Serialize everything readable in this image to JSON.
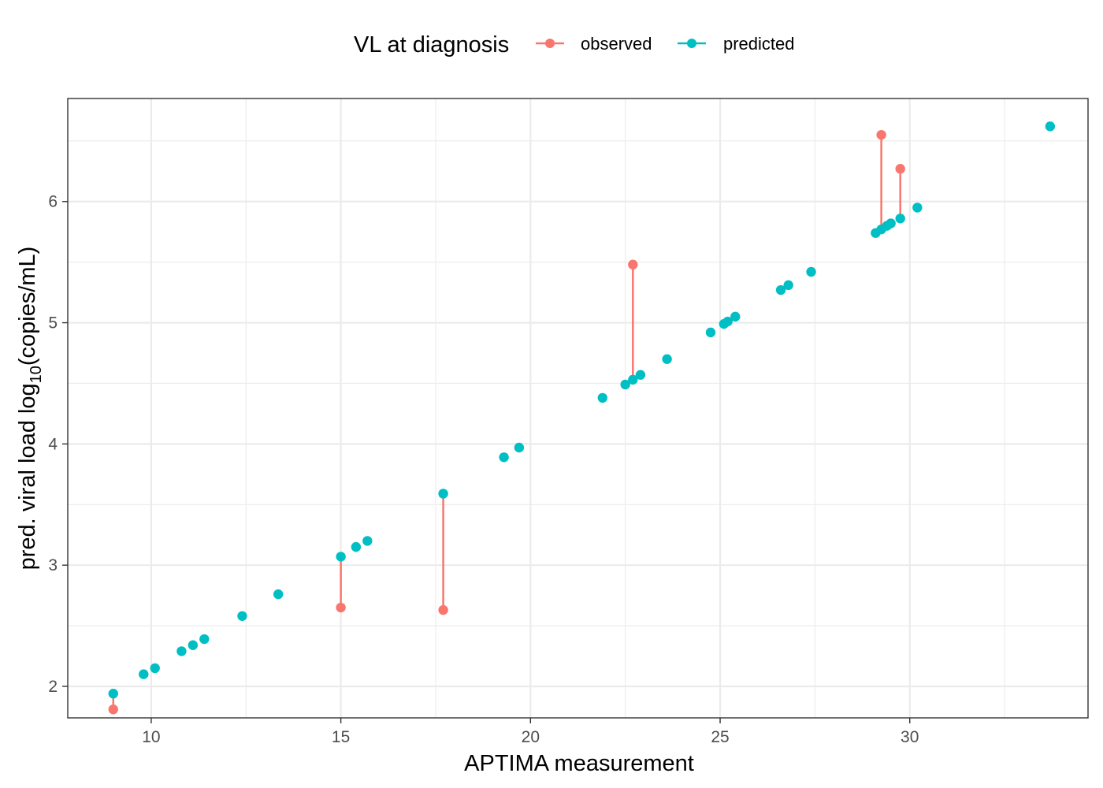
{
  "chart_data": {
    "type": "scatter",
    "title": "",
    "xlabel": "APTIMA measurement",
    "ylabel_parts": [
      "pred. viral load log",
      "10",
      "(copies/mL)"
    ],
    "xlim": [
      7.8,
      34.7
    ],
    "ylim": [
      1.74,
      6.85
    ],
    "x_ticks": [
      10,
      15,
      20,
      25,
      30
    ],
    "y_ticks": [
      2,
      3,
      4,
      5,
      6
    ],
    "x_tick_labels": [
      "10",
      "15",
      "20",
      "25",
      "30"
    ],
    "y_tick_labels": [
      "2",
      "3",
      "4",
      "5",
      "6"
    ],
    "grid": true,
    "legend": {
      "title": "VL at diagnosis",
      "position": "top",
      "entries": [
        {
          "name": "observed",
          "color": "#F8766D"
        },
        {
          "name": "predicted",
          "color": "#00BFC4"
        }
      ]
    },
    "series": [
      {
        "name": "predicted",
        "color": "#00BFC4",
        "points": [
          [
            9.0,
            1.94
          ],
          [
            9.8,
            2.1
          ],
          [
            10.1,
            2.15
          ],
          [
            10.8,
            2.29
          ],
          [
            11.1,
            2.34
          ],
          [
            11.4,
            2.39
          ],
          [
            12.4,
            2.58
          ],
          [
            13.35,
            2.76
          ],
          [
            15.0,
            3.07
          ],
          [
            15.4,
            3.15
          ],
          [
            15.7,
            3.2
          ],
          [
            17.7,
            3.59
          ],
          [
            19.3,
            3.89
          ],
          [
            19.7,
            3.97
          ],
          [
            21.9,
            4.38
          ],
          [
            22.5,
            4.49
          ],
          [
            22.7,
            4.53
          ],
          [
            22.9,
            4.57
          ],
          [
            23.6,
            4.7
          ],
          [
            24.75,
            4.92
          ],
          [
            25.1,
            4.99
          ],
          [
            25.2,
            5.01
          ],
          [
            25.4,
            5.05
          ],
          [
            26.6,
            5.27
          ],
          [
            26.8,
            5.31
          ],
          [
            27.4,
            5.42
          ],
          [
            29.1,
            5.74
          ],
          [
            29.25,
            5.77
          ],
          [
            29.4,
            5.8
          ],
          [
            29.5,
            5.82
          ],
          [
            29.75,
            5.86
          ],
          [
            30.2,
            5.95
          ],
          [
            33.7,
            6.62
          ]
        ]
      },
      {
        "name": "observed",
        "color": "#F8766D",
        "points": [
          [
            9.0,
            1.81
          ],
          [
            15.0,
            2.65
          ],
          [
            17.7,
            2.63
          ],
          [
            22.7,
            5.48
          ],
          [
            29.25,
            6.55
          ],
          [
            29.75,
            6.27
          ]
        ]
      }
    ],
    "segments": [
      {
        "x": 9.0,
        "y_observed": 1.81,
        "y_predicted": 1.94
      },
      {
        "x": 15.0,
        "y_observed": 2.65,
        "y_predicted": 3.07
      },
      {
        "x": 17.7,
        "y_observed": 2.63,
        "y_predicted": 3.59
      },
      {
        "x": 22.7,
        "y_observed": 5.48,
        "y_predicted": 4.53
      },
      {
        "x": 29.25,
        "y_observed": 6.55,
        "y_predicted": 5.77
      },
      {
        "x": 29.75,
        "y_observed": 6.27,
        "y_predicted": 5.86
      }
    ]
  }
}
